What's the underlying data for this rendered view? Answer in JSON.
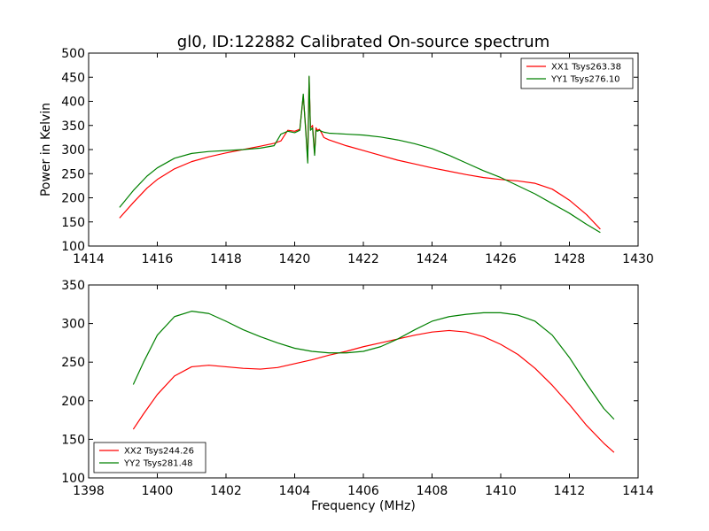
{
  "figure": {
    "title": "gl0, ID:122882 Calibrated On-source spectrum",
    "xlabel": "Frequency (MHz)"
  },
  "chart_data": [
    {
      "type": "line",
      "title": "gl0, ID:122882 Calibrated On-source spectrum",
      "xlabel": "",
      "ylabel": "Power in Kelvin",
      "xlim": [
        1414,
        1430
      ],
      "ylim": [
        100,
        500
      ],
      "xticks": [
        1414,
        1416,
        1418,
        1420,
        1422,
        1424,
        1426,
        1428,
        1430
      ],
      "yticks": [
        100,
        150,
        200,
        250,
        300,
        350,
        400,
        450,
        500
      ],
      "legend_position": "top-right",
      "grid": false,
      "series": [
        {
          "name": "XX1 Tsys263.38",
          "color": "#ff0000",
          "x": [
            1414.9,
            1415.3,
            1415.7,
            1416.0,
            1416.5,
            1417.0,
            1417.5,
            1418.0,
            1418.5,
            1419.0,
            1419.4,
            1419.6,
            1419.8,
            1420.0,
            1420.15,
            1420.25,
            1420.32,
            1420.38,
            1420.42,
            1420.46,
            1420.52,
            1420.58,
            1420.62,
            1420.66,
            1420.72,
            1420.78,
            1420.85,
            1421.0,
            1421.5,
            1422.0,
            1422.5,
            1423.0,
            1423.5,
            1424.0,
            1424.5,
            1425.0,
            1425.5,
            1426.0,
            1426.5,
            1427.0,
            1427.5,
            1428.0,
            1428.5,
            1428.9
          ],
          "y": [
            158,
            190,
            220,
            238,
            260,
            275,
            285,
            293,
            300,
            307,
            313,
            318,
            340,
            338,
            342,
            412,
            345,
            278,
            450,
            345,
            350,
            292,
            345,
            340,
            342,
            335,
            325,
            320,
            308,
            298,
            288,
            278,
            270,
            262,
            255,
            248,
            242,
            238,
            235,
            230,
            218,
            195,
            165,
            135
          ]
        },
        {
          "name": "YY1 Tsys276.10",
          "color": "#008000",
          "x": [
            1414.9,
            1415.3,
            1415.7,
            1416.0,
            1416.5,
            1417.0,
            1417.5,
            1418.0,
            1418.5,
            1419.0,
            1419.4,
            1419.6,
            1419.8,
            1420.0,
            1420.15,
            1420.25,
            1420.32,
            1420.38,
            1420.42,
            1420.46,
            1420.52,
            1420.58,
            1420.62,
            1420.66,
            1420.72,
            1420.78,
            1420.85,
            1421.0,
            1421.5,
            1422.0,
            1422.5,
            1423.0,
            1423.5,
            1424.0,
            1424.5,
            1425.0,
            1425.5,
            1426.0,
            1426.5,
            1427.0,
            1427.5,
            1428.0,
            1428.5,
            1428.9
          ],
          "y": [
            180,
            215,
            245,
            262,
            282,
            292,
            296,
            298,
            300,
            303,
            308,
            332,
            338,
            335,
            340,
            415,
            340,
            272,
            452,
            340,
            345,
            288,
            340,
            338,
            340,
            338,
            336,
            334,
            332,
            330,
            326,
            320,
            312,
            302,
            288,
            272,
            256,
            242,
            225,
            208,
            188,
            168,
            145,
            128
          ]
        }
      ]
    },
    {
      "type": "line",
      "title": "",
      "xlabel": "Frequency (MHz)",
      "ylabel": "",
      "xlim": [
        1398,
        1414
      ],
      "ylim": [
        100,
        350
      ],
      "xticks": [
        1398,
        1400,
        1402,
        1404,
        1406,
        1408,
        1410,
        1412,
        1414
      ],
      "yticks": [
        100,
        150,
        200,
        250,
        300,
        350
      ],
      "legend_position": "bottom-left",
      "grid": false,
      "series": [
        {
          "name": "XX2 Tsys244.26",
          "color": "#ff0000",
          "x": [
            1399.3,
            1399.6,
            1400.0,
            1400.5,
            1401.0,
            1401.5,
            1402.0,
            1402.5,
            1403.0,
            1403.5,
            1404.0,
            1404.5,
            1405.0,
            1405.5,
            1406.0,
            1406.5,
            1407.0,
            1407.5,
            1408.0,
            1408.5,
            1409.0,
            1409.5,
            1410.0,
            1410.5,
            1411.0,
            1411.5,
            1412.0,
            1412.5,
            1413.0,
            1413.3
          ],
          "y": [
            163,
            183,
            208,
            232,
            244,
            246,
            244,
            242,
            241,
            243,
            248,
            253,
            259,
            264,
            270,
            275,
            280,
            285,
            289,
            291,
            289,
            283,
            273,
            260,
            242,
            220,
            195,
            168,
            145,
            133
          ]
        },
        {
          "name": "YY2 Tsys281.48",
          "color": "#008000",
          "x": [
            1399.3,
            1399.6,
            1400.0,
            1400.5,
            1401.0,
            1401.5,
            1402.0,
            1402.5,
            1403.0,
            1403.5,
            1404.0,
            1404.5,
            1405.0,
            1405.5,
            1406.0,
            1406.5,
            1407.0,
            1407.5,
            1408.0,
            1408.5,
            1409.0,
            1409.5,
            1410.0,
            1410.5,
            1411.0,
            1411.5,
            1412.0,
            1412.5,
            1413.0,
            1413.3
          ],
          "y": [
            221,
            250,
            285,
            309,
            316,
            313,
            303,
            292,
            283,
            275,
            268,
            264,
            262,
            262,
            264,
            270,
            280,
            292,
            303,
            309,
            312,
            314,
            314,
            311,
            303,
            285,
            256,
            222,
            190,
            176
          ]
        }
      ]
    }
  ]
}
